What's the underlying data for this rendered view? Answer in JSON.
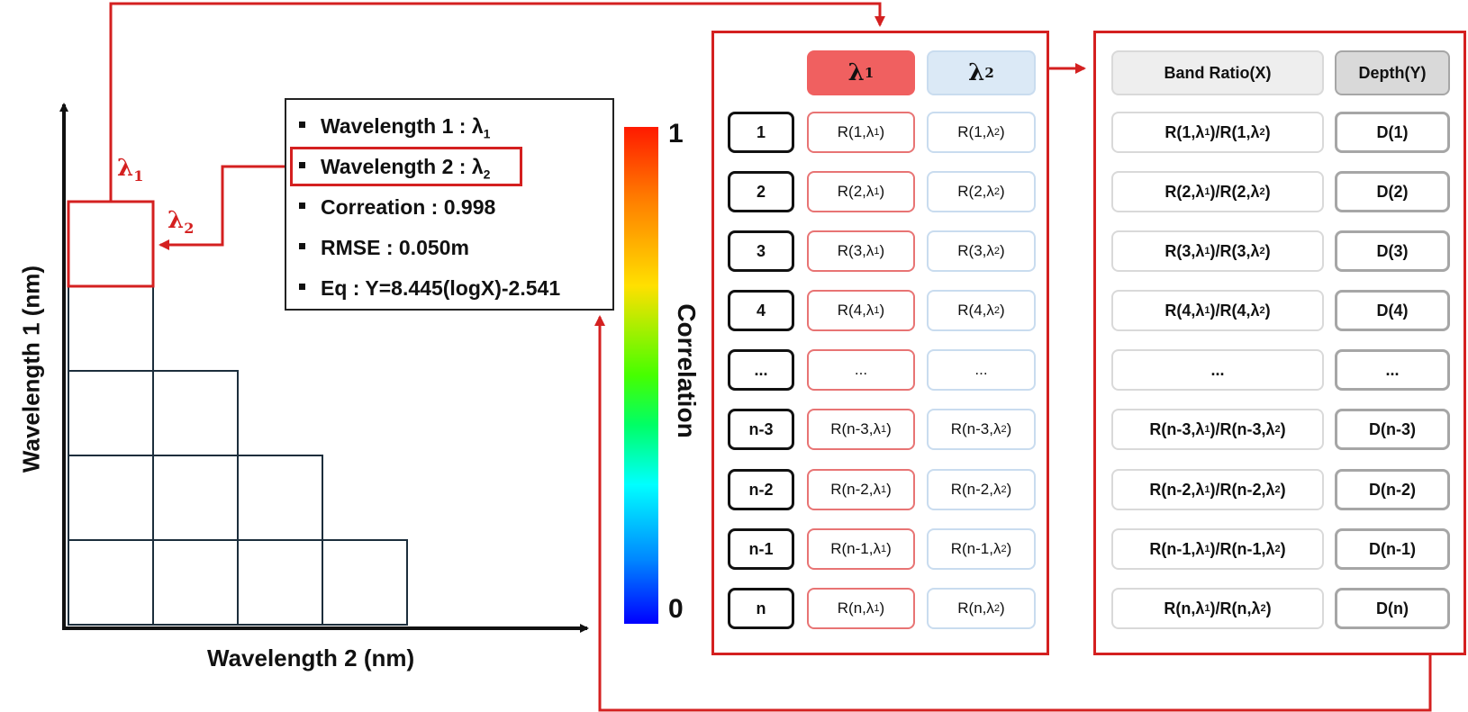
{
  "plot": {
    "y_axis_label": "Wavelength 1 (nm)",
    "x_axis_label": "Wavelength 2 (nm)",
    "lambda1_symbol": "λ",
    "lambda1_sub": "1",
    "lambda2_symbol": "λ",
    "lambda2_sub": "2"
  },
  "legend": {
    "items": [
      {
        "text": "Wavelength  1 : λ",
        "sub": "1"
      },
      {
        "text": "Wavelength  2 : λ",
        "sub": "2"
      },
      {
        "text": "Correation  : 0.998",
        "sub": ""
      },
      {
        "text": "RMSE : 0.050m",
        "sub": ""
      },
      {
        "text": "Eq : Y=8.445(logX)-2.541",
        "sub": ""
      }
    ]
  },
  "colorbar": {
    "max_label": "1",
    "min_label": "0",
    "title": "Correlation"
  },
  "table1": {
    "header_l1": "λ",
    "header_l1_sub": "1",
    "header_l2": "λ",
    "header_l2_sub": "2",
    "rows": [
      {
        "idx": "1",
        "r1": "R(1,λ",
        "r2": "R(1,λ"
      },
      {
        "idx": "2",
        "r1": "R(2,λ",
        "r2": "R(2,λ"
      },
      {
        "idx": "3",
        "r1": "R(3,λ",
        "r2": "R(3,λ"
      },
      {
        "idx": "4",
        "r1": "R(4,λ",
        "r2": "R(4,λ"
      },
      {
        "idx": "...",
        "r1": "...",
        "r2": "..."
      },
      {
        "idx": "n-3",
        "r1": "R(n-3,λ",
        "r2": "R(n-3,λ"
      },
      {
        "idx": "n-2",
        "r1": "R(n-2,λ",
        "r2": "R(n-2,λ"
      },
      {
        "idx": "n-1",
        "r1": "R(n-1,λ",
        "r2": "R(n-1,λ"
      },
      {
        "idx": "n",
        "r1": "R(n,λ",
        "r2": "R(n,λ"
      }
    ]
  },
  "table2": {
    "header_ratio": "Band Ratio(X)",
    "header_depth": "Depth(Y)",
    "rows": [
      {
        "ratio_a": "R(1,λ",
        "ratio_b": ")/R(1,λ",
        "depth": "D(1)"
      },
      {
        "ratio_a": "R(2,λ",
        "ratio_b": ")/R(2,λ",
        "depth": "D(2)"
      },
      {
        "ratio_a": "R(3,λ",
        "ratio_b": ")/R(3,λ",
        "depth": "D(3)"
      },
      {
        "ratio_a": "R(4,λ",
        "ratio_b": ")/R(4,λ",
        "depth": "D(4)"
      },
      {
        "ratio_a": "...",
        "ratio_b": "",
        "depth": "..."
      },
      {
        "ratio_a": "R(n-3,λ",
        "ratio_b": ")/R(n-3,λ",
        "depth": "D(n-3)"
      },
      {
        "ratio_a": "R(n-2,λ",
        "ratio_b": ")/R(n-2,λ",
        "depth": "D(n-2)"
      },
      {
        "ratio_a": "R(n-1,λ",
        "ratio_b": ")/R(n-1,λ",
        "depth": "D(n-1)"
      },
      {
        "ratio_a": "R(n,λ",
        "ratio_b": ")/R(n,λ",
        "depth": "D(n)"
      }
    ]
  },
  "colors": {
    "accent_red": "#d42020",
    "grid_line": "#1c2e3c"
  }
}
